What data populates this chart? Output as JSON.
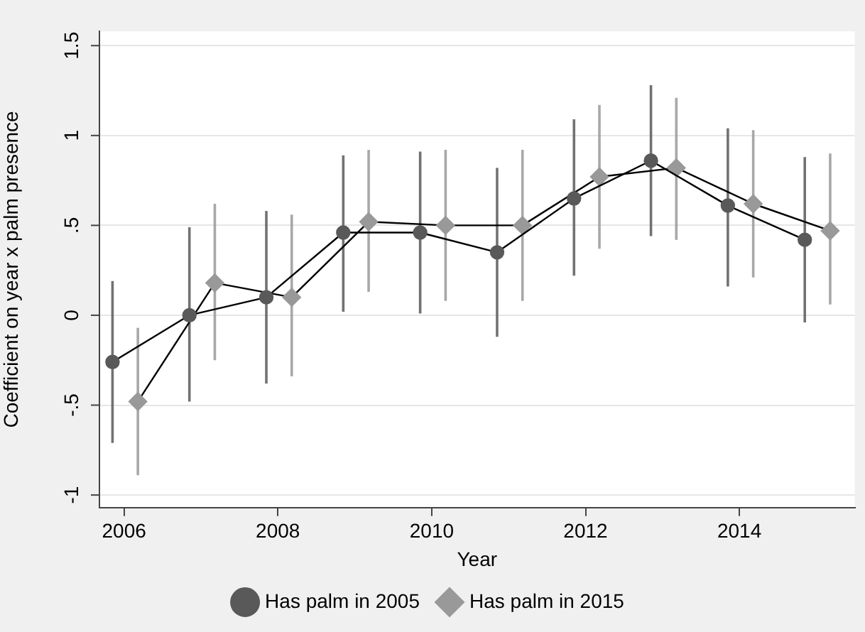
{
  "chart_data": {
    "type": "line",
    "xlabel": "Year",
    "ylabel": "Coefficient on year x palm presence",
    "xlim": [
      2005.68,
      2015.5
    ],
    "xticks": [
      2006,
      2008,
      2010,
      2012,
      2014
    ],
    "ylim": [
      -1.07,
      1.58
    ],
    "yticks": [
      {
        "value": -1,
        "label": "-1"
      },
      {
        "value": -0.5,
        "label": "-.5"
      },
      0,
      {
        "value": 0.5,
        "label": ".5"
      },
      1,
      1.5
    ],
    "grid": "y",
    "legend": "bottom",
    "series": [
      {
        "name": "Has palm in 2005",
        "color": "#595959",
        "marker": "circle",
        "x": [
          2005.85,
          2006.85,
          2007.85,
          2008.85,
          2009.85,
          2010.85,
          2011.85,
          2012.85,
          2013.85,
          2014.85
        ],
        "values": [
          -0.26,
          0,
          0.1,
          0.46,
          0.46,
          0.35,
          0.65,
          0.86,
          0.61,
          0.42
        ],
        "errors": [
          [
            -0.71,
            0.19
          ],
          [
            -0.48,
            0.49
          ],
          [
            -0.38,
            0.58
          ],
          [
            0.02,
            0.89
          ],
          [
            0.01,
            0.91
          ],
          [
            -0.12,
            0.82
          ],
          [
            0.22,
            1.09
          ],
          [
            0.44,
            1.28
          ],
          [
            0.16,
            1.04
          ],
          [
            -0.04,
            0.88
          ]
        ]
      },
      {
        "name": "Has palm in 2015",
        "color": "#999999",
        "marker": "diamond",
        "x": [
          2006.18,
          2007.18,
          2008.18,
          2009.18,
          2010.18,
          2011.18,
          2012.18,
          2013.18,
          2014.18,
          2015.18
        ],
        "values": [
          -0.48,
          0.18,
          0.1,
          0.52,
          0.5,
          0.5,
          0.77,
          0.82,
          0.62,
          0.47
        ],
        "errors": [
          [
            -0.89,
            -0.07
          ],
          [
            -0.25,
            0.62
          ],
          [
            -0.34,
            0.56
          ],
          [
            0.13,
            0.92
          ],
          [
            0.08,
            0.92
          ],
          [
            0.08,
            0.92
          ],
          [
            0.37,
            1.17
          ],
          [
            0.42,
            1.21
          ],
          [
            0.21,
            1.03
          ],
          [
            0.06,
            0.9
          ]
        ]
      }
    ]
  }
}
